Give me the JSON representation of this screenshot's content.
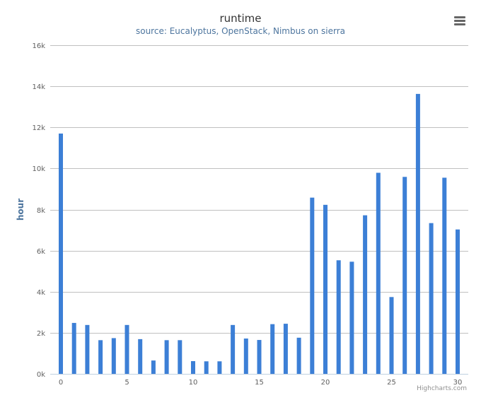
{
  "chart": {
    "title": "runtime",
    "subtitle": "source: Eucalyptus, OpenStack, Nimbus on sierra",
    "credit": "Highcharts.com",
    "menu_icon": "hamburger-menu-icon",
    "bar_color": "#3c7fd6",
    "grid_color": "#c0c0c0"
  },
  "chart_data": {
    "type": "bar",
    "title": "runtime",
    "subtitle": "source: Eucalyptus, OpenStack, Nimbus on sierra",
    "xlabel": "",
    "ylabel": "hour",
    "ylim": [
      0,
      16000
    ],
    "yticks": [
      0,
      2000,
      4000,
      6000,
      8000,
      10000,
      12000,
      14000,
      16000
    ],
    "ytick_labels": [
      "0k",
      "2k",
      "4k",
      "6k",
      "8k",
      "10k",
      "12k",
      "14k",
      "16k"
    ],
    "xlim": [
      0,
      30
    ],
    "xticks": [
      0,
      5,
      10,
      15,
      20,
      25,
      30
    ],
    "xtick_labels": [
      "0",
      "5",
      "10",
      "15",
      "20",
      "25",
      "30"
    ],
    "grid": true,
    "legend": false,
    "x": [
      0,
      1,
      2,
      3,
      4,
      5,
      6,
      7,
      8,
      9,
      10,
      11,
      12,
      13,
      14,
      15,
      16,
      17,
      18,
      19,
      20,
      21,
      22,
      23,
      24,
      25,
      26,
      27,
      28,
      29,
      30
    ],
    "values": [
      11700,
      2480,
      2380,
      1640,
      1740,
      2380,
      1690,
      650,
      1640,
      1640,
      620,
      610,
      610,
      2380,
      1720,
      1650,
      2420,
      2440,
      1760,
      8580,
      8230,
      5530,
      5460,
      7720,
      9790,
      3740,
      9590,
      13630,
      7340,
      9550,
      7030
    ]
  }
}
